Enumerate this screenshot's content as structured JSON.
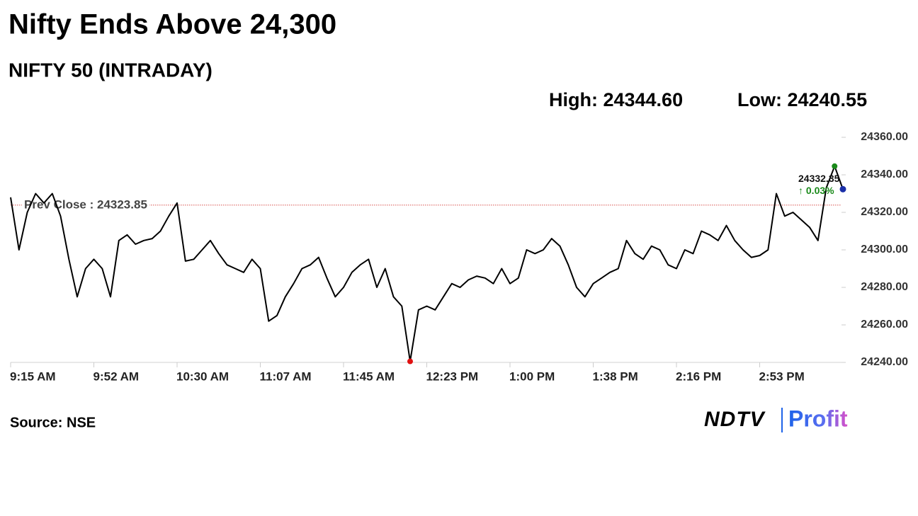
{
  "chart_data": {
    "type": "line",
    "title": "Nifty Ends Above 24,300",
    "subtitle": "NIFTY 50 (INTRADAY)",
    "high_label": "High: 24344.60",
    "low_label": "Low: 24240.55",
    "categories": [
      "9:15 AM",
      null,
      null,
      null,
      null,
      null,
      null,
      null,
      null,
      null,
      "9:52 AM",
      null,
      null,
      null,
      null,
      null,
      null,
      null,
      null,
      null,
      "10:30 AM",
      null,
      null,
      null,
      null,
      null,
      null,
      null,
      null,
      null,
      "11:07 AM",
      null,
      null,
      null,
      null,
      null,
      null,
      null,
      null,
      null,
      "11:45 AM",
      null,
      null,
      null,
      null,
      null,
      null,
      null,
      null,
      null,
      "12:23 PM",
      null,
      null,
      null,
      null,
      null,
      null,
      null,
      null,
      null,
      "1:00 PM",
      null,
      null,
      null,
      null,
      null,
      null,
      null,
      null,
      null,
      "1:38 PM",
      null,
      null,
      null,
      null,
      null,
      null,
      null,
      null,
      null,
      "2:16 PM",
      null,
      null,
      null,
      null,
      null,
      null,
      null,
      null,
      null,
      "2:53 PM",
      null,
      null,
      null,
      null,
      null,
      null,
      null,
      null,
      null,
      null
    ],
    "series": [
      {
        "name": "NIFTY 50",
        "color": "#000000",
        "values": [
          24328,
          24300,
          24320,
          24330,
          24325,
          24330,
          24318,
          24295,
          24275,
          24290,
          24295,
          24290,
          24275,
          24305,
          24308,
          24303,
          24305,
          24306,
          24310,
          24318,
          24325,
          24294,
          24295,
          24300,
          24305,
          24298,
          24292,
          24290,
          24288,
          24295,
          24290,
          24262,
          24265,
          24275,
          24282,
          24290,
          24292,
          24296,
          24285,
          24275,
          24280,
          24288,
          24292,
          24295,
          24280,
          24290,
          24275,
          24270,
          24240.55,
          24268,
          24270,
          24268,
          24275,
          24282,
          24280,
          24284,
          24286,
          24285,
          24282,
          24290,
          24282,
          24285,
          24300,
          24298,
          24300,
          24306,
          24302,
          24292,
          24280,
          24275,
          24282,
          24285,
          24288,
          24290,
          24305,
          24298,
          24295,
          24302,
          24300,
          24292,
          24290,
          24300,
          24298,
          24310,
          24308,
          24305,
          24313,
          24305,
          24300,
          24296,
          24297,
          24300,
          24330,
          24318,
          24320,
          24316,
          24312,
          24305,
          24333,
          24344.6,
          24332.35
        ]
      }
    ],
    "high_color": "#1a8a1a",
    "low_color": "#e01010",
    "last_color": "#1a2fa8",
    "last_label": "24332.35",
    "change_label": "↑ 0.03%",
    "change_color": "#1a8a1a",
    "reference_line": {
      "label": "Prev Close : 24323.85",
      "value": 24323.85,
      "color": "#d9534f"
    },
    "ylim": [
      24240,
      24360
    ],
    "yticks": [
      {
        "value": 24240,
        "label": "24240.00"
      },
      {
        "value": 24260,
        "label": "24260.00"
      },
      {
        "value": 24280,
        "label": "24280.00"
      },
      {
        "value": 24300,
        "label": "24300.00"
      },
      {
        "value": 24320,
        "label": "24320.00"
      },
      {
        "value": 24340,
        "label": "24340.00"
      },
      {
        "value": 24360,
        "label": "24360.00"
      }
    ],
    "source": "Source: NSE",
    "logo": {
      "brand": "NDTV",
      "product": "Profit"
    }
  }
}
